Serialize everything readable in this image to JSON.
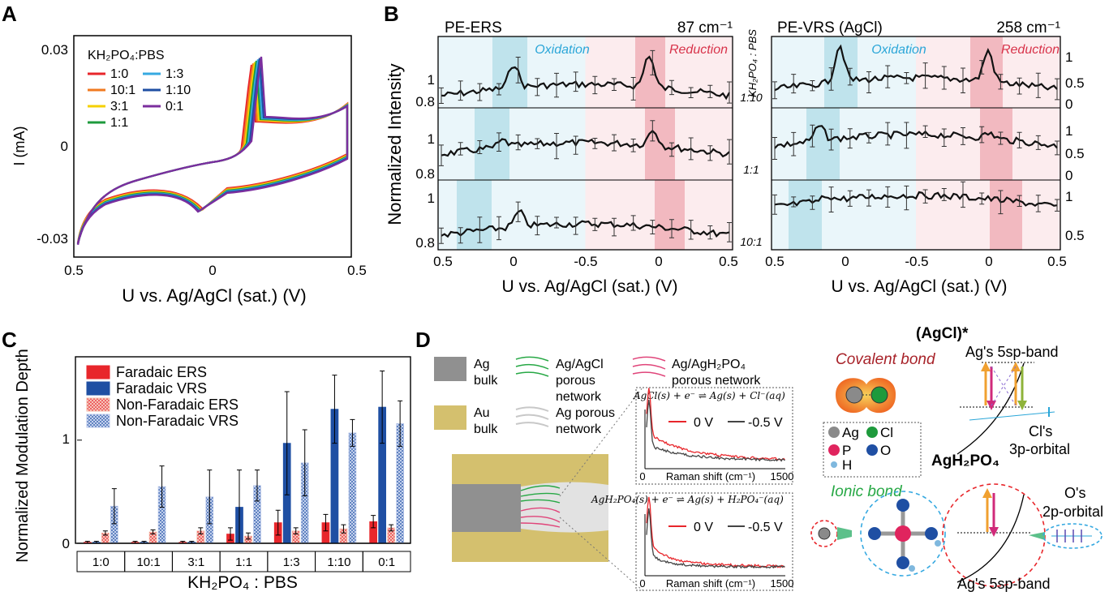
{
  "panels": {
    "A": "A",
    "B": "B",
    "C": "C",
    "D": "D"
  },
  "panel_a": {
    "legend_title": "KH₂PO₄:PBS",
    "legend": [
      {
        "label": "1:0",
        "color": "#e8262b"
      },
      {
        "label": "10:1",
        "color": "#f07a20"
      },
      {
        "label": "3:1",
        "color": "#f5d000"
      },
      {
        "label": "1:1",
        "color": "#1e9a3c"
      },
      {
        "label": "1:3",
        "color": "#36a9e1"
      },
      {
        "label": "1:10",
        "color": "#1f4fa3"
      },
      {
        "label": "0:1",
        "color": "#7b2e9e"
      }
    ],
    "y_ticks": [
      "0.03",
      "0",
      "-0.03"
    ],
    "x_ticks": [
      "0.5",
      "0",
      "0.5"
    ],
    "ylabel": "I  (mA)",
    "xlabel": "U vs. Ag/AgCl (sat.) (V)"
  },
  "panel_b": {
    "left_title": "PE-ERS",
    "left_wavenumber": "87 cm⁻¹",
    "right_title": "PE-VRS (AgCl)",
    "right_wavenumber": "258 cm⁻¹",
    "oxidation": "Oxidation",
    "reduction": "Reduction",
    "ylabel": "Normalized Intensity",
    "ratio_axis": "KH₂PO₄ : PBS",
    "ratios": [
      "1:10",
      "1:1",
      "10:1"
    ],
    "left_y_ticks": [
      "1",
      "0.8",
      "1",
      "0.8",
      "1",
      "0.8"
    ],
    "right_y_ticks": [
      "1",
      "0.5",
      "0",
      "1",
      "0.5",
      "0",
      "1",
      "0.5"
    ],
    "x_ticks": [
      "0.5",
      "0",
      "-0.5",
      "0",
      "0.5"
    ],
    "xlabel": "U vs. Ag/AgCl (sat.) (V)"
  },
  "chart_data": [
    {
      "type": "bar",
      "categories": [
        "1:0",
        "10:1",
        "3:1",
        "1:1",
        "1:3",
        "1:10",
        "0:1"
      ],
      "series": [
        {
          "name": "Faradaic ERS",
          "values": [
            0.01,
            0.01,
            0.01,
            0.09,
            0.2,
            0.2,
            0.21
          ],
          "errors": [
            0.01,
            0.01,
            0.01,
            0.06,
            0.12,
            0.08,
            0.06
          ]
        },
        {
          "name": "Faradaic VRS",
          "values": [
            0.01,
            0.01,
            0.01,
            0.35,
            0.97,
            1.3,
            1.32
          ],
          "errors": [
            0.01,
            0.01,
            0.01,
            0.36,
            0.5,
            0.33,
            0.35
          ]
        },
        {
          "name": "Non-Faradaic ERS",
          "values": [
            0.1,
            0.11,
            0.12,
            0.07,
            0.12,
            0.14,
            0.15
          ],
          "errors": [
            0.02,
            0.02,
            0.03,
            0.03,
            0.03,
            0.04,
            0.03
          ]
        },
        {
          "name": "Non-Faradaic VRS",
          "values": [
            0.36,
            0.55,
            0.45,
            0.56,
            0.78,
            1.07,
            1.16
          ],
          "errors": [
            0.17,
            0.2,
            0.26,
            0.15,
            0.32,
            0.13,
            0.22
          ]
        }
      ],
      "colors": [
        "#e8262b",
        "#1f4fa3",
        "#f3b9a8",
        "#b7c6ea"
      ],
      "ylabel": "Normalized Modulation Depth",
      "xlabel": "KH₂PO₄ : PBS",
      "y_ticks": [
        "0",
        "1"
      ],
      "ylim": [
        0,
        1.8
      ],
      "legend": "top-left"
    }
  ],
  "panel_d": {
    "legend": [
      {
        "label1": "Ag",
        "label2": "bulk",
        "kind": "ag-bulk"
      },
      {
        "label1": "Ag/AgCl",
        "label2": "porous",
        "label3": "network",
        "kind": "agcl"
      },
      {
        "label1": "Ag/AgH₂PO₄",
        "label2": "porous network",
        "kind": "agh2po4"
      },
      {
        "label1": "Au",
        "label2": "bulk",
        "kind": "au"
      },
      {
        "label1": "Ag porous",
        "label2": "network",
        "kind": "agpor"
      }
    ],
    "eq1": "AgCl(s) + e⁻ ⇌ Ag(s) + Cl⁻(aq)",
    "eq2": "AgH₂PO₄(s) + e⁻ ⇌ Ag(s) + H₂PO₄⁻(aq)",
    "spec_legend": [
      "0 V",
      "-0.5 V"
    ],
    "spec_xlabel": "Raman shift (cm⁻¹)",
    "spec_x0": "0",
    "spec_x1": "1500",
    "covalent": "Covalent bond",
    "ionic": "Ionic bond",
    "agcl_star": "(AgCl)*",
    "agh2po4": "AgH₂PO₄",
    "ag5sp": "Ag's 5sp-band",
    "cl3p1": "Cl's",
    "cl3p2": "3p-orbital",
    "o2p1": "O's",
    "o2p2": "2p-orbital",
    "ag5sp_bottom": "Ag's 5sp-band",
    "atoms": [
      {
        "label": "Ag",
        "color": "#8a8a8a"
      },
      {
        "label": "Cl",
        "color": "#1e9a3c"
      },
      {
        "label": "P",
        "color": "#e0245e"
      },
      {
        "label": "O",
        "color": "#1f4fa3"
      },
      {
        "label": "H",
        "color": "#7fb8de"
      }
    ]
  }
}
